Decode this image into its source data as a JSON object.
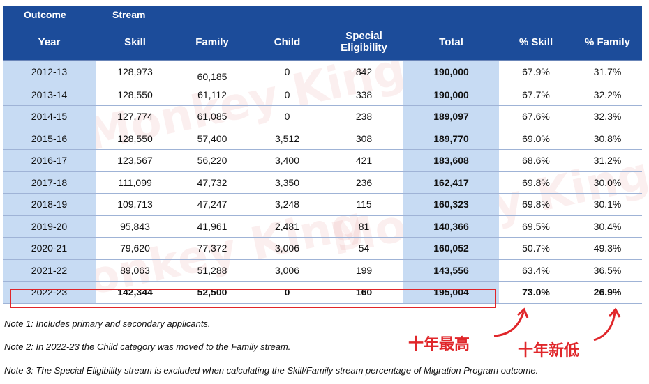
{
  "table": {
    "stream_header": {
      "outcome": "Outcome",
      "stream": "Stream"
    },
    "columns": [
      "Year",
      "Skill",
      "Family",
      "Child",
      "Special Eligibility",
      "Total",
      "% Skill",
      "% Family"
    ],
    "rows": [
      [
        "2012-13",
        "128,973",
        "60,185",
        "0",
        "842",
        "190,000",
        "67.9%",
        "31.7%"
      ],
      [
        "2013-14",
        "128,550",
        "61,112",
        "0",
        "338",
        "190,000",
        "67.7%",
        "32.2%"
      ],
      [
        "2014-15",
        "127,774",
        "61,085",
        "0",
        "238",
        "189,097",
        "67.6%",
        "32.3%"
      ],
      [
        "2015-16",
        "128,550",
        "57,400",
        "3,512",
        "308",
        "189,770",
        "69.0%",
        "30.8%"
      ],
      [
        "2016-17",
        "123,567",
        "56,220",
        "3,400",
        "421",
        "183,608",
        "68.6%",
        "31.2%"
      ],
      [
        "2017-18",
        "111,099",
        "47,732",
        "3,350",
        "236",
        "162,417",
        "69.8%",
        "30.0%"
      ],
      [
        "2018-19",
        "109,713",
        "47,247",
        "3,248",
        "115",
        "160,323",
        "69.8%",
        "30.1%"
      ],
      [
        "2019-20",
        "95,843",
        "41,961",
        "2,481",
        "81",
        "140,366",
        "69.5%",
        "30.4%"
      ],
      [
        "2020-21",
        "79,620",
        "77,372",
        "3,006",
        "54",
        "160,052",
        "50.7%",
        "49.3%"
      ],
      [
        "2021-22",
        "89,063",
        "51,288",
        "3,006",
        "199",
        "143,556",
        "63.4%",
        "36.5%"
      ],
      [
        "2022-23",
        "142,344",
        "52,500",
        "0",
        "160",
        "195,004",
        "73.0%",
        "26.9%"
      ]
    ]
  },
  "notes": [
    "Note 1: Includes primary and secondary applicants.",
    "Note 2: In 2022-23 the Child category was moved to the Family stream.",
    "Note 3: The Special Eligibility stream is excluded when calculating the Skill/Family stream percentage of Migration Program outcome."
  ],
  "annotations": {
    "highest": "十年最高",
    "lowest": "十年新低"
  },
  "watermark": "Monkey King",
  "colors": {
    "header_bg": "#1c4c9a",
    "shaded_col": "#c7dbf3",
    "annotation_red": "#e0262a"
  }
}
